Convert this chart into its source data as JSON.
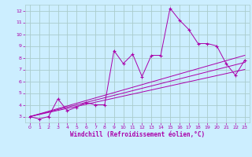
{
  "title": "",
  "xlabel": "Windchill (Refroidissement éolien,°C)",
  "ylabel": "",
  "bg_color": "#cceeff",
  "grid_color": "#aacccc",
  "line_color": "#aa00aa",
  "xlim": [
    -0.5,
    23.5
  ],
  "ylim": [
    2.5,
    12.5
  ],
  "xticks": [
    0,
    1,
    2,
    3,
    4,
    5,
    6,
    7,
    8,
    9,
    10,
    11,
    12,
    13,
    14,
    15,
    16,
    17,
    18,
    19,
    20,
    21,
    22,
    23
  ],
  "yticks": [
    3,
    4,
    5,
    6,
    7,
    8,
    9,
    10,
    11,
    12
  ],
  "series": [
    [
      0,
      3.0
    ],
    [
      1,
      2.8
    ],
    [
      2,
      3.0
    ],
    [
      3,
      4.5
    ],
    [
      4,
      3.5
    ],
    [
      5,
      3.8
    ],
    [
      6,
      4.2
    ],
    [
      7,
      4.0
    ],
    [
      8,
      4.0
    ],
    [
      9,
      8.6
    ],
    [
      10,
      7.5
    ],
    [
      11,
      8.3
    ],
    [
      12,
      6.4
    ],
    [
      13,
      8.2
    ],
    [
      14,
      8.2
    ],
    [
      15,
      12.2
    ],
    [
      16,
      11.2
    ],
    [
      17,
      10.4
    ],
    [
      18,
      9.2
    ],
    [
      19,
      9.2
    ],
    [
      20,
      9.0
    ],
    [
      21,
      7.5
    ],
    [
      22,
      6.5
    ],
    [
      23,
      7.8
    ]
  ],
  "trend_lines": [
    {
      "x": [
        0,
        23
      ],
      "y": [
        3.0,
        8.2
      ]
    },
    {
      "x": [
        0,
        23
      ],
      "y": [
        3.0,
        7.6
      ]
    },
    {
      "x": [
        0,
        23
      ],
      "y": [
        3.0,
        7.0
      ]
    }
  ]
}
